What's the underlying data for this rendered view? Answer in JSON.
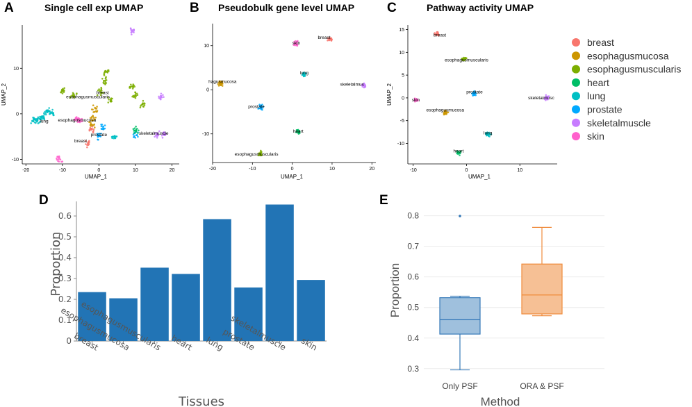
{
  "legend": {
    "items": [
      {
        "label": "breast",
        "color": "#f8766d"
      },
      {
        "label": "esophagusmucosa",
        "color": "#cd9600"
      },
      {
        "label": "esophagusmuscularis",
        "color": "#7cae00"
      },
      {
        "label": "heart",
        "color": "#00be67"
      },
      {
        "label": "lung",
        "color": "#00bfc4"
      },
      {
        "label": "prostate",
        "color": "#00a9ff"
      },
      {
        "label": "skeletalmuscle",
        "color": "#c77cff"
      },
      {
        "label": "skin",
        "color": "#ff61cc"
      }
    ]
  },
  "chart_data": [
    {
      "panel": "A",
      "type": "scatter",
      "title": "Single cell exp UMAP",
      "xlabel": "UMAP_1",
      "ylabel": "UMAP_2",
      "xlim": [
        -21,
        22
      ],
      "ylim": [
        -11,
        19.5
      ],
      "xticks": [
        -20,
        -10,
        0,
        10,
        20
      ],
      "yticks": [
        -10,
        0,
        10
      ],
      "clusters": [
        {
          "tissue": "esophagusmuscularis",
          "x": [
            -10,
            -7,
            0.5,
            1.5,
            2,
            3,
            9,
            10,
            12
          ],
          "y": [
            5,
            4,
            5,
            7,
            9,
            3,
            6,
            4,
            2
          ],
          "color": "#7cae00"
        },
        {
          "tissue": "esophagusmucosa",
          "x": [
            -1.5,
            -1,
            -2
          ],
          "y": [
            -1,
            1,
            -2.5
          ],
          "color": "#cd9600"
        },
        {
          "tissue": "breast",
          "x": [
            -3,
            -2
          ],
          "y": [
            -6.5,
            -3.5
          ],
          "color": "#f8766d"
        },
        {
          "tissue": "lung",
          "x": [
            -18,
            -17,
            -16,
            -15,
            -14,
            -13,
            4
          ],
          "y": [
            -1.5,
            -1.5,
            -1,
            -0.5,
            0.5,
            0,
            -5
          ],
          "color": "#00bfc4"
        },
        {
          "tissue": "prostate",
          "x": [
            0,
            1,
            10
          ],
          "y": [
            -5,
            -3,
            -4.5
          ],
          "color": "#00a9ff"
        },
        {
          "tissue": "heart",
          "x": [
            10
          ],
          "y": [
            -3.5
          ],
          "color": "#00be67"
        },
        {
          "tissue": "skeletalmuscle",
          "x": [
            16,
            18,
            17,
            9
          ],
          "y": [
            -4.5,
            -4.5,
            3.5,
            18
          ],
          "color": "#c77cff"
        },
        {
          "tissue": "skin",
          "x": [
            -6,
            -5,
            -11
          ],
          "y": [
            -1,
            -1.5,
            -10
          ],
          "color": "#ff61cc"
        }
      ],
      "annotations": [
        {
          "text": "breast",
          "x": 1,
          "y": 4.3
        },
        {
          "text": "esophagusmuscularis",
          "x": -3,
          "y": 3.4
        },
        {
          "text": "lung",
          "x": -15,
          "y": -1.9
        },
        {
          "text": "esophagusmucosa",
          "x": -6,
          "y": -1.7
        },
        {
          "text": "prostate",
          "x": 0,
          "y": -4.9
        },
        {
          "text": "breast",
          "x": -5,
          "y": -6.3
        },
        {
          "text": "skeletalmuscle",
          "x": 15,
          "y": -4.6
        }
      ]
    },
    {
      "panel": "B",
      "type": "scatter",
      "title": "Pseudobulk gene level UMAP",
      "xlabel": "UMAP_1",
      "ylabel": "",
      "xlim": [
        -20,
        21
      ],
      "ylim": [
        -16.5,
        15
      ],
      "xticks": [
        -20,
        -10,
        0,
        10,
        20
      ],
      "yticks": [
        -10,
        0,
        10
      ],
      "clusters": [
        {
          "tissue": "breast",
          "x": [
            9.5
          ],
          "y": [
            11.5
          ],
          "color": "#f8766d"
        },
        {
          "tissue": "skin",
          "x": [
            1
          ],
          "y": [
            10.5
          ],
          "color": "#ff61cc"
        },
        {
          "tissue": "lung",
          "x": [
            3
          ],
          "y": [
            3.5
          ],
          "color": "#00bfc4"
        },
        {
          "tissue": "skeletalmuscle",
          "x": [
            18
          ],
          "y": [
            1
          ],
          "color": "#c77cff"
        },
        {
          "tissue": "esophagusmucosa",
          "x": [
            -18
          ],
          "y": [
            1.5
          ],
          "color": "#cd9600"
        },
        {
          "tissue": "prostate",
          "x": [
            -8
          ],
          "y": [
            -4
          ],
          "color": "#00a9ff"
        },
        {
          "tissue": "heart",
          "x": [
            1.5
          ],
          "y": [
            -9.5
          ],
          "color": "#00be67"
        },
        {
          "tissue": "esophagusmuscularis",
          "x": [
            -8
          ],
          "y": [
            -14.5
          ],
          "color": "#7cae00"
        }
      ],
      "annotations": [
        {
          "text": "breast",
          "x": 8,
          "y": 11.5
        },
        {
          "text": "skin",
          "x": 1,
          "y": 10.3
        },
        {
          "text": "lung",
          "x": 3,
          "y": 3.5
        },
        {
          "text": "skeletalmus",
          "x": 15,
          "y": 0.9
        },
        {
          "text": "hagusmucosa",
          "x": -17.5,
          "y": 1.5
        },
        {
          "text": "prostate",
          "x": -9,
          "y": -4.1
        },
        {
          "text": "heart",
          "x": 1.5,
          "y": -9.7
        },
        {
          "text": "esophagusmuscularis",
          "x": -9,
          "y": -14.9
        }
      ]
    },
    {
      "panel": "C",
      "type": "scatter",
      "title": "Pathway activity UMAP",
      "xlabel": "UMAP_1",
      "ylabel": "UMAP_2",
      "xlim": [
        -11,
        17
      ],
      "ylim": [
        -14.5,
        16
      ],
      "xticks": [
        -10,
        0,
        10
      ],
      "yticks": [
        -10,
        -5,
        0,
        5,
        10,
        15
      ],
      "clusters": [
        {
          "tissue": "breast",
          "x": [
            -5.5
          ],
          "y": [
            14
          ],
          "color": "#f8766d"
        },
        {
          "tissue": "esophagusmuscularis",
          "x": [
            -0.5
          ],
          "y": [
            8.5
          ],
          "color": "#7cae00"
        },
        {
          "tissue": "prostate",
          "x": [
            1.5
          ],
          "y": [
            1
          ],
          "color": "#00a9ff"
        },
        {
          "tissue": "skin",
          "x": [
            -9.5
          ],
          "y": [
            -0.5
          ],
          "color": "#ff61cc"
        },
        {
          "tissue": "esophagusmucosa",
          "x": [
            -4
          ],
          "y": [
            -3.3
          ],
          "color": "#cd9600"
        },
        {
          "tissue": "skeletalmuscle",
          "x": [
            15
          ],
          "y": [
            0
          ],
          "color": "#c77cff"
        },
        {
          "tissue": "lung",
          "x": [
            4
          ],
          "y": [
            -8
          ],
          "color": "#00bfc4"
        },
        {
          "tissue": "heart",
          "x": [
            -1.5
          ],
          "y": [
            -12
          ],
          "color": "#00be67"
        }
      ],
      "annotations": [
        {
          "text": "breast",
          "x": -5,
          "y": 13.5
        },
        {
          "text": "esophagusmuscularis",
          "x": 0,
          "y": 8
        },
        {
          "text": "prostate",
          "x": 1.5,
          "y": 1
        },
        {
          "text": "skin",
          "x": -9.5,
          "y": -0.8
        },
        {
          "text": "esophagusmucosa",
          "x": -4,
          "y": -3
        },
        {
          "text": "skeletalmusc",
          "x": 14,
          "y": -0.3
        },
        {
          "text": "lung",
          "x": 4,
          "y": -8
        },
        {
          "text": "heart",
          "x": -1.5,
          "y": -12
        }
      ]
    },
    {
      "panel": "D",
      "type": "bar",
      "categories": [
        "breast",
        "esophagusmucosa",
        "esophagusmuscularis",
        "heart",
        "lung",
        "prostate",
        "skeletalmuscle",
        "skin"
      ],
      "values": [
        0.235,
        0.205,
        0.352,
        0.322,
        0.585,
        0.257,
        0.655,
        0.293
      ],
      "xlabel": "Tissues",
      "ylabel": "Proportion",
      "ylim": [
        0,
        0.67
      ],
      "yticks": [
        0,
        0.1,
        0.2,
        0.3,
        0.4,
        0.5,
        0.6
      ],
      "color": "#2274b5"
    },
    {
      "panel": "E",
      "type": "box",
      "categories": [
        "Only PSF",
        "ORA & PSF"
      ],
      "boxes": [
        {
          "name": "Only PSF",
          "min": 0.296,
          "q1": 0.413,
          "median": 0.46,
          "q3": 0.532,
          "max": 0.537,
          "outliers": [
            0.799
          ],
          "color": "#3579b8",
          "fill": "#9fc0dd"
        },
        {
          "name": "ORA & PSF",
          "min": 0.473,
          "q1": 0.479,
          "median": 0.541,
          "q3": 0.642,
          "max": 0.762,
          "outliers": [],
          "color": "#ef8a3a",
          "fill": "#f6c095"
        }
      ],
      "xlabel": "Method",
      "ylabel": "Proportion",
      "ylim": [
        0.27,
        0.84
      ],
      "yticks": [
        0.3,
        0.4,
        0.5,
        0.6,
        0.7,
        0.8
      ]
    }
  ]
}
